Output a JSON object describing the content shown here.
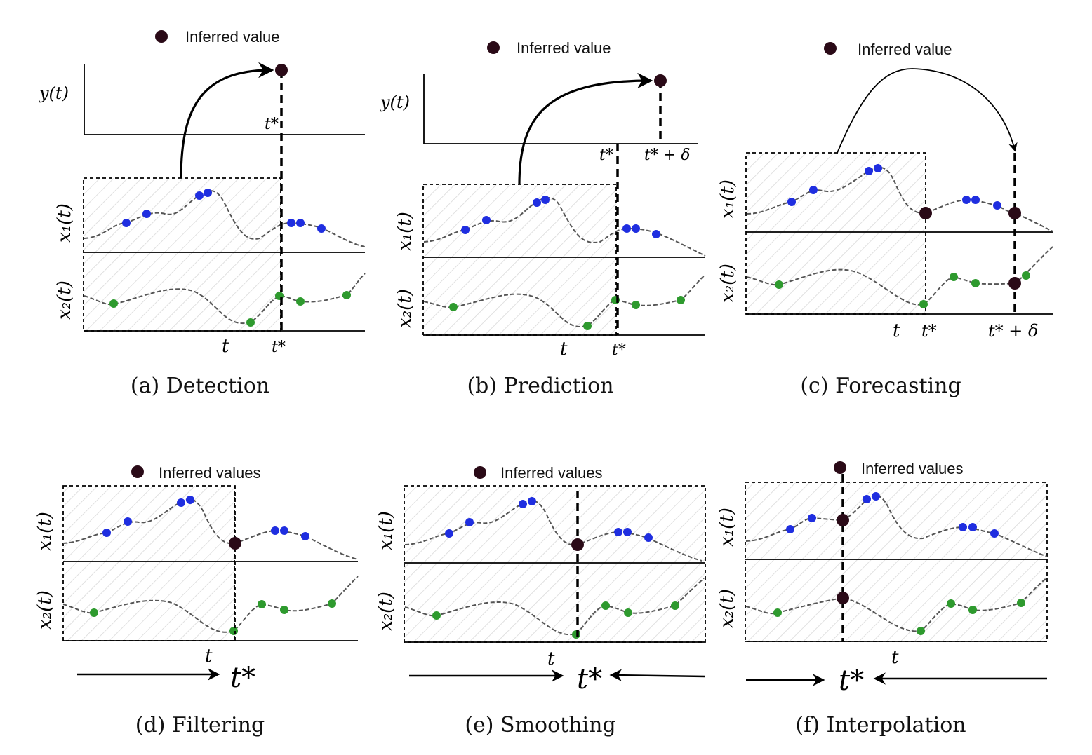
{
  "colors": {
    "sensor_x1": "#1f2ee0",
    "sensor_x2": "#2e9a2e",
    "inferred": "#2a0a17",
    "curve": "#555555"
  },
  "panels": {
    "a": {
      "caption": "(a) Detection",
      "legend": "Inferred value",
      "y_label": "y(t)",
      "x1_label": "x₁(t)",
      "x2_label": "x₂(t)",
      "t_label": "t",
      "tstar_top": "t*",
      "tstar_bottom": "t*"
    },
    "b": {
      "caption": "(b) Prediction",
      "legend": "Inferred value",
      "y_label": "y(t)",
      "x1_label": "x₁(t)",
      "x2_label": "x₂(t)",
      "t_label": "t",
      "tstar_top": "t*",
      "tstar_delta": "t* + δ",
      "tstar_bottom": "t*"
    },
    "c": {
      "caption": "(c) Forecasting",
      "legend": "Inferred value",
      "x1_label": "x₁(t)",
      "x2_label": "x₂(t)",
      "t_label": "t",
      "tstar_bottom": "t*",
      "tstar_delta": "t* + δ"
    },
    "d": {
      "caption": "(d) Filtering",
      "legend": "Inferred values",
      "x1_label": "x₁(t)",
      "x2_label": "x₂(t)",
      "t_label": "t",
      "tstar_big": "t*"
    },
    "e": {
      "caption": "(e) Smoothing",
      "legend": "Inferred values",
      "x1_label": "x₁(t)",
      "x2_label": "x₂(t)",
      "t_label": "t",
      "tstar_big": "t*"
    },
    "f": {
      "caption": "(f) Interpolation",
      "legend": "Inferred values",
      "x1_label": "x₁(t)",
      "x2_label": "x₂(t)",
      "t_label": "t",
      "tstar_big": "t*"
    }
  }
}
